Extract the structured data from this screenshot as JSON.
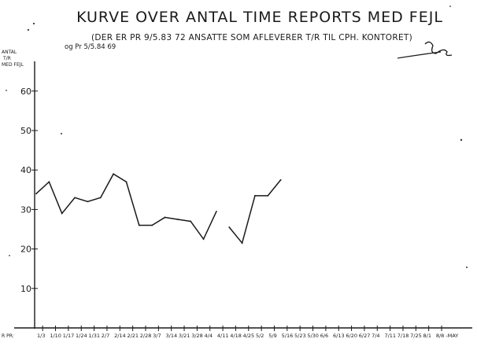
{
  "chart_data": {
    "type": "line",
    "title": "KURVE OVER ANTAL TIME REPORTS MED FEJL",
    "subtitle": "(DER ER PR 9/5.83 72 ANSATTE SOM AFLEVERER T/R TIL CPH. KONTORET)",
    "subtitle2": "og Pr 5/5.84 69",
    "signature": "handwritten initials",
    "ylabel": [
      "ANTAL",
      "T/R",
      "MED FEJL"
    ],
    "xlabel": "R PR:",
    "ylim": [
      0,
      65
    ],
    "yticks": [
      10,
      20,
      30,
      40,
      50,
      60
    ],
    "grid": false,
    "categories": [
      "1/3",
      "1/10",
      "1/17",
      "1/24",
      "1/31",
      "2/7",
      "2/14",
      "2/21",
      "2/28",
      "3/7",
      "3/14",
      "3/21",
      "3/28",
      "4/4",
      "4/11",
      "4/18",
      "4/25",
      "5/2",
      "5/9",
      "5/16",
      "5/23",
      "5/30",
      "6/6",
      "6/13",
      "6/20",
      "6/27",
      "7/4",
      "7/11",
      "7/18",
      "7/25",
      "8/1",
      "8/8 -MAY"
    ],
    "series": [
      {
        "segments": [
          {
            "start_index": 0,
            "values": [
              34,
              37,
              29,
              33,
              32,
              33,
              39,
              37,
              26,
              26,
              28,
              27.5,
              27,
              22.5,
              29.5
            ]
          },
          {
            "start_index": 15,
            "values": [
              25.5,
              21.5,
              33.5,
              33.5,
              37.5
            ]
          }
        ]
      }
    ]
  }
}
